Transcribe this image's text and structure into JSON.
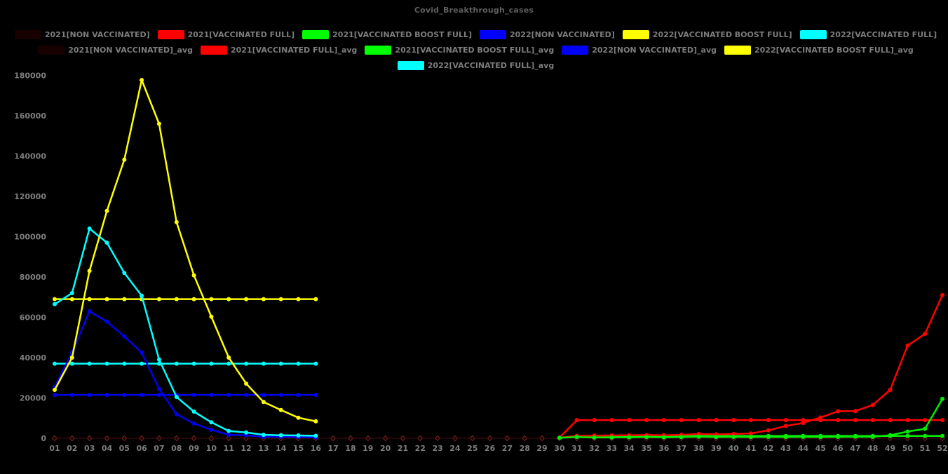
{
  "title": "Covid_Breakthrough_cases",
  "colors": {
    "background": "#000000",
    "title_text": "#5f5f5f",
    "axis_text": "#7d7d7d",
    "legend_text": "#7d7d7d",
    "red": "#ff0000",
    "green": "#00ee00",
    "blue": "#0000ee",
    "yellow": "#ffff00",
    "cyan": "#00ffff",
    "dark_red_zero_line": "#350a0a",
    "dark_red_marker": "#7e2424"
  },
  "legend": {
    "rows": [
      [
        {
          "swatch": "#180000",
          "label": "2021[NON VACCINATED]"
        },
        {
          "swatch": "#ff0000",
          "label": "2021[VACCINATED FULL]"
        },
        {
          "swatch": "#00ff00",
          "label": "2021[VACCINATED BOOST FULL]"
        },
        {
          "swatch": "#0000ff",
          "label": "2022[NON VACCINATED]"
        },
        {
          "swatch": "#ffff00",
          "label": "2022[VACCINATED BOOST FULL]"
        },
        {
          "swatch": "#00ffff",
          "label": "2022[VACCINATED FULL]"
        }
      ],
      [
        {
          "swatch": "#180000",
          "label": "2021[NON VACCINATED]_avg"
        },
        {
          "swatch": "#ff0000",
          "label": "2021[VACCINATED FULL]_avg"
        },
        {
          "swatch": "#00ff00",
          "label": "2021[VACCINATED BOOST FULL]_avg"
        },
        {
          "swatch": "#0000ff",
          "label": "2022[NON VACCINATED]_avg"
        },
        {
          "swatch": "#ffff00",
          "label": "2022[VACCINATED BOOST FULL]_avg"
        }
      ],
      [
        {
          "swatch": "#00ffff",
          "label": "2022[VACCINATED FULL]_avg"
        }
      ]
    ]
  },
  "chart_data": {
    "type": "line",
    "title": "Covid_Breakthrough_cases",
    "xlabel": "",
    "ylabel": "",
    "ylim": [
      0,
      180000
    ],
    "ytick_step": 20000,
    "grid": false,
    "legend_position": "top",
    "x_categories": [
      "01",
      "02",
      "03",
      "04",
      "05",
      "06",
      "07",
      "08",
      "09",
      "10",
      "11",
      "12",
      "13",
      "14",
      "15",
      "16",
      "17",
      "18",
      "19",
      "20",
      "21",
      "22",
      "23",
      "24",
      "25",
      "26",
      "27",
      "28",
      "29",
      "30",
      "31",
      "32",
      "33",
      "34",
      "35",
      "36",
      "37",
      "38",
      "39",
      "40",
      "41",
      "42",
      "43",
      "44",
      "45",
      "46",
      "47",
      "48",
      "49",
      "50",
      "51",
      "52"
    ],
    "series": [
      {
        "name": "2021[NON VACCINATED]",
        "color": "#350a0a",
        "marker": "diamond",
        "marker_color": "#7e2424",
        "line_width": 1.2,
        "start_week": 1,
        "values": [
          0,
          0,
          0,
          0,
          0,
          0,
          0,
          0,
          0,
          0,
          0,
          0,
          0,
          0,
          0,
          0,
          0,
          0,
          0,
          0,
          0,
          0,
          0,
          0,
          0,
          0,
          0,
          0,
          0,
          0,
          0,
          0,
          0,
          0,
          0,
          0,
          0,
          0,
          0,
          0,
          0,
          0,
          0,
          0,
          0,
          0,
          0,
          0,
          0,
          0,
          0,
          0
        ]
      },
      {
        "name": "2021[NON VACCINATED]_avg",
        "color": "#350a0a",
        "marker": "none",
        "line_width": 1.2,
        "start_week": 1,
        "values": [
          0,
          0,
          0,
          0,
          0,
          0,
          0,
          0,
          0,
          0,
          0,
          0,
          0,
          0,
          0,
          0,
          0,
          0,
          0,
          0,
          0,
          0,
          0,
          0,
          0,
          0,
          0,
          0,
          0,
          0,
          0,
          0,
          0,
          0,
          0,
          0,
          0,
          0,
          0,
          0,
          0,
          0,
          0,
          0,
          0,
          0,
          0,
          0,
          0,
          0,
          0,
          0
        ]
      },
      {
        "name": "2021[VACCINATED FULL]_avg",
        "color": "#ff0000",
        "marker": "circle",
        "line_width": 2.5,
        "start_week": 30,
        "values": [
          300,
          9000,
          9000,
          9000,
          9000,
          9000,
          9000,
          9000,
          9000,
          9000,
          9000,
          9000,
          9000,
          9000,
          9000,
          9000,
          9000,
          9000,
          9000,
          9000,
          9000,
          9000,
          9000
        ]
      },
      {
        "name": "2021[VACCINATED BOOST FULL]_avg",
        "color": "#00ee00",
        "marker": "circle",
        "line_width": 2.5,
        "start_week": 30,
        "values": [
          200,
          1100,
          1100,
          1100,
          1100,
          1100,
          1100,
          1100,
          1100,
          1100,
          1100,
          1100,
          1100,
          1100,
          1100,
          1100,
          1100,
          1100,
          1100,
          1100,
          1100,
          1100,
          1100
        ]
      },
      {
        "name": "2022[NON VACCINATED]_avg",
        "color": "#0000ee",
        "marker": "circle",
        "line_width": 2.5,
        "start_week": 1,
        "values": [
          21500,
          21500,
          21500,
          21500,
          21500,
          21500,
          21500,
          21500,
          21500,
          21500,
          21500,
          21500,
          21500,
          21500,
          21500,
          21500
        ]
      },
      {
        "name": "2022[VACCINATED BOOST FULL]_avg",
        "color": "#ffff00",
        "marker": "circle",
        "line_width": 2.5,
        "start_week": 1,
        "values": [
          69000,
          69000,
          69000,
          69000,
          69000,
          69000,
          69000,
          69000,
          69000,
          69000,
          69000,
          69000,
          69000,
          69000,
          69000,
          69000
        ]
      },
      {
        "name": "2022[VACCINATED FULL]_avg",
        "color": "#00ffff",
        "marker": "circle",
        "line_width": 2.5,
        "start_week": 1,
        "values": [
          37000,
          37000,
          37000,
          37000,
          37000,
          37000,
          37000,
          37000,
          37000,
          37000,
          37000,
          37000,
          37000,
          37000,
          37000,
          37000
        ]
      },
      {
        "name": "2022[NON VACCINATED]",
        "color": "#0000ee",
        "marker": "circle",
        "line_width": 2.5,
        "start_week": 1,
        "values": [
          25500,
          42500,
          63000,
          57800,
          50500,
          42500,
          24500,
          11900,
          7300,
          4200,
          1700,
          1500,
          700,
          700,
          600,
          400
        ]
      },
      {
        "name": "2022[VACCINATED FULL]",
        "color": "#00ffff",
        "marker": "circle",
        "line_width": 2.5,
        "start_week": 1,
        "values": [
          66500,
          72000,
          104000,
          97000,
          82000,
          70700,
          39000,
          20500,
          13200,
          7900,
          3600,
          2900,
          1700,
          1500,
          1400,
          1200
        ]
      },
      {
        "name": "2022[VACCINATED BOOST FULL]",
        "color": "#ffff00",
        "marker": "circle",
        "line_width": 2.5,
        "start_week": 1,
        "values": [
          24000,
          40000,
          83000,
          112800,
          138200,
          177700,
          156000,
          107200,
          80800,
          60300,
          40000,
          27100,
          18000,
          14000,
          10200,
          8400
        ]
      },
      {
        "name": "2021[VACCINATED FULL]",
        "color": "#ff0000",
        "marker": "circle",
        "line_width": 2.5,
        "start_week": 30,
        "values": [
          300,
          1100,
          1300,
          1400,
          1500,
          1600,
          1500,
          1700,
          2100,
          1900,
          2100,
          2400,
          3900,
          6100,
          7600,
          10300,
          13400,
          13500,
          16500,
          24000,
          46000,
          51800,
          71000
        ]
      },
      {
        "name": "2021[VACCINATED BOOST FULL]",
        "color": "#00ee00",
        "marker": "circle",
        "line_width": 2.5,
        "start_week": 30,
        "values": [
          200,
          600,
          400,
          400,
          500,
          600,
          500,
          600,
          800,
          600,
          700,
          600,
          700,
          600,
          700,
          600,
          700,
          800,
          700,
          1500,
          3300,
          4700,
          19500
        ]
      }
    ]
  }
}
